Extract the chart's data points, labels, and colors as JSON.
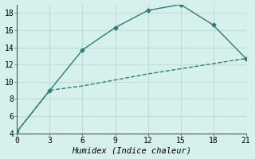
{
  "xlabel": "Humidex (Indice chaleur)",
  "line1_x": [
    0,
    3,
    6,
    9,
    12,
    15,
    18,
    21
  ],
  "line1_y": [
    4.2,
    9.0,
    13.7,
    16.3,
    18.3,
    19.0,
    16.6,
    12.7
  ],
  "line2_x": [
    0,
    3,
    6,
    9,
    12,
    15,
    18,
    21
  ],
  "line2_y": [
    4.2,
    9.0,
    9.5,
    10.2,
    10.9,
    11.5,
    12.1,
    12.7
  ],
  "line_color": "#2e7d6e",
  "bg_color": "#d6f0ee",
  "grid_color": "#c0dcd8",
  "xlim": [
    0,
    21
  ],
  "ylim": [
    4,
    19
  ],
  "xticks": [
    0,
    3,
    6,
    9,
    12,
    15,
    18,
    21
  ],
  "yticks": [
    4,
    6,
    8,
    10,
    12,
    14,
    16,
    18
  ],
  "marker": "D",
  "marker_size": 2.5,
  "line_width": 1.0,
  "tick_fontsize": 7,
  "xlabel_fontsize": 7.5
}
